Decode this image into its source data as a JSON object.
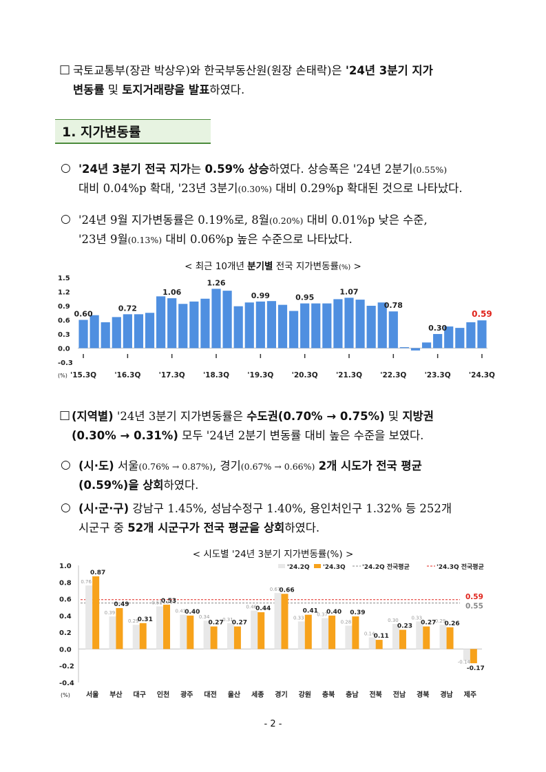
{
  "intro": {
    "box": "□",
    "t1": "국토교통부(장관 박상우)와 한국부동산원(원장 손태락)은 ",
    "t2": "'24년 3분기 지가",
    "t3": "변동률",
    "t4": " 및 ",
    "t5": "토지거래량을 발표",
    "t6": "하였다."
  },
  "section1": {
    "title": "1. 지가변동률"
  },
  "b1": {
    "mark": "○",
    "t1": "'24년 3분기 전국 지가",
    "t2": "는 ",
    "t3": "0.59% 상승",
    "t4": "하였다. 상승폭은 '24년 2분기",
    "t5": "(0.55%)",
    "t6": "대비 0.04%p 확대, '23년 3분기",
    "t7": "(0.30%)",
    "t8": " 대비 0.29%p 확대된 것으로 나타났다."
  },
  "b2": {
    "mark": "○",
    "t1": "'24년 9월 지가변동률은 0.19%로, 8월",
    "t2": "(0.20%)",
    "t3": " 대비 0.01%p 낮은 수준,",
    "t4": "'23년 9월",
    "t5": "(0.13%)",
    "t6": " 대비 0.06%p 높은 수준으로 나타났다."
  },
  "chart1_title": {
    "pre": "< 최근 10개년 ",
    "bold": "분기별",
    "post": " 전국 지가변동률",
    "unit": "(%)",
    "end": " >"
  },
  "region": {
    "box": "□",
    "t1": "(지역별)",
    "t2": " '24년 3분기 지가변동률은 ",
    "t3": "수도권(0.70% → 0.75%)",
    "t4": " 및 ",
    "t5": "지방권",
    "t6": "(0.30% → 0.31%)",
    "t7": " 모두 '24년 2분기 변동률 대비 높은 수준을 보였다."
  },
  "b3": {
    "mark": "○",
    "t1": "(시·도)",
    "t2": " 서울",
    "t3": "(0.76% → 0.87%)",
    "t4": ", 경기",
    "t5": "(0.67% → 0.66%)",
    "t6": " ",
    "t7": "2개 시도가 전국 평균",
    "t8": "(0.59%)을 상회",
    "t9": "하였다."
  },
  "b4": {
    "mark": "○",
    "t1": "(시·군·구)",
    "t2": " 강남구 1.45%, 성남수정구 1.40%, 용인처인구 1.32% 등 252개",
    "t3": "시군구 중 ",
    "t4": "52개 시군구가 전국 평균을 상회",
    "t5": "하였다."
  },
  "chart2_title": "< 시도별 '24년 3분기 지가변동률(%) >",
  "page_number": "- 2 -",
  "colors": {
    "bar_blue": "#4f8fe0",
    "bar_orange": "#f7a21b",
    "bar_light": "#e8e8e8",
    "avg_red": "#e0241c",
    "avg_gray": "#888888",
    "section_green": "#4a8a3a"
  },
  "chart_data": [
    {
      "type": "bar",
      "title": "최근 10개년 분기별 전국 지가변동률(%)",
      "unit_label": "(%)",
      "ylim": [
        -0.3,
        1.5
      ],
      "yticks": [
        -0.3,
        0.0,
        0.3,
        0.6,
        0.9,
        1.2,
        1.5
      ],
      "ytick_labels": [
        "-0.3",
        "0.0",
        "0.3",
        "0.6",
        "0.9",
        "1.2",
        "1.5"
      ],
      "x_tick_labels": [
        "'15.3Q",
        "'16.3Q",
        "'17.3Q",
        "'18.3Q",
        "'19.3Q",
        "'20.3Q",
        "'21.3Q",
        "'22.3Q",
        "'23.3Q",
        "'24.3Q"
      ],
      "values": [
        0.6,
        0.7,
        0.55,
        0.66,
        0.72,
        0.72,
        0.75,
        1.1,
        1.06,
        0.94,
        0.99,
        1.05,
        1.26,
        1.22,
        0.89,
        0.97,
        0.99,
        1.0,
        0.92,
        0.79,
        0.95,
        0.95,
        0.95,
        1.04,
        1.07,
        1.03,
        0.9,
        0.97,
        0.78,
        0.02,
        -0.05,
        0.12,
        0.3,
        0.46,
        0.43,
        0.55,
        0.59
      ],
      "data_labels": [
        {
          "index": 0,
          "text": "0.60"
        },
        {
          "index": 4,
          "text": "0.72"
        },
        {
          "index": 8,
          "text": "1.06"
        },
        {
          "index": 12,
          "text": "1.26"
        },
        {
          "index": 16,
          "text": "0.99"
        },
        {
          "index": 20,
          "text": "0.95"
        },
        {
          "index": 24,
          "text": "1.07"
        },
        {
          "index": 28,
          "text": "0.78"
        },
        {
          "index": 32,
          "text": "0.30"
        },
        {
          "index": 36,
          "text": "0.59",
          "highlight": true
        }
      ]
    },
    {
      "type": "bar",
      "title": "시도별 '24년 3분기 지가변동률(%)",
      "unit_label": "(%)",
      "ylim": [
        -0.4,
        1.0
      ],
      "yticks": [
        -0.4,
        -0.2,
        0.0,
        0.2,
        0.4,
        0.6,
        0.8,
        1.0
      ],
      "ytick_labels": [
        "-0.4",
        "-0.2",
        "0.0",
        "0.2",
        "0.4",
        "0.6",
        "0.8",
        "1.0"
      ],
      "categories": [
        "서울",
        "부산",
        "대구",
        "인천",
        "광주",
        "대전",
        "울산",
        "세종",
        "경기",
        "강원",
        "충북",
        "충남",
        "전북",
        "전남",
        "경북",
        "경남",
        "제주"
      ],
      "series": [
        {
          "name": "'24.2Q",
          "values": [
            0.76,
            0.39,
            0.29,
            0.51,
            0.41,
            0.34,
            0.31,
            0.46,
            0.67,
            0.33,
            0.37,
            0.28,
            0.14,
            0.3,
            0.33,
            0.29,
            -0.14
          ],
          "labels": [
            "0.76",
            "0.39",
            "0.29",
            "0.51",
            "0.41",
            "0.34",
            "0.31",
            "0.46",
            "0.67",
            "0.33",
            "0.37",
            "0.28",
            "0.14",
            "0.30",
            "0.33",
            "0.29",
            "-0.14"
          ]
        },
        {
          "name": "'24.3Q",
          "values": [
            0.87,
            0.49,
            0.31,
            0.53,
            0.4,
            0.27,
            0.27,
            0.44,
            0.66,
            0.41,
            0.4,
            0.39,
            0.11,
            0.23,
            0.27,
            0.26,
            -0.17
          ],
          "labels": [
            "0.87",
            "0.49",
            "0.31",
            "0.53",
            "0.40",
            "0.27",
            "0.27",
            "0.44",
            "0.66",
            "0.41",
            "0.40",
            "0.39",
            "0.11",
            "0.23",
            "0.27",
            "0.26",
            "-0.17"
          ]
        }
      ],
      "reference_lines": [
        {
          "name": "'24.2Q 전국평균",
          "value": 0.55,
          "label": "0.55"
        },
        {
          "name": "'24.3Q 전국평균",
          "value": 0.59,
          "label": "0.59"
        }
      ]
    }
  ]
}
